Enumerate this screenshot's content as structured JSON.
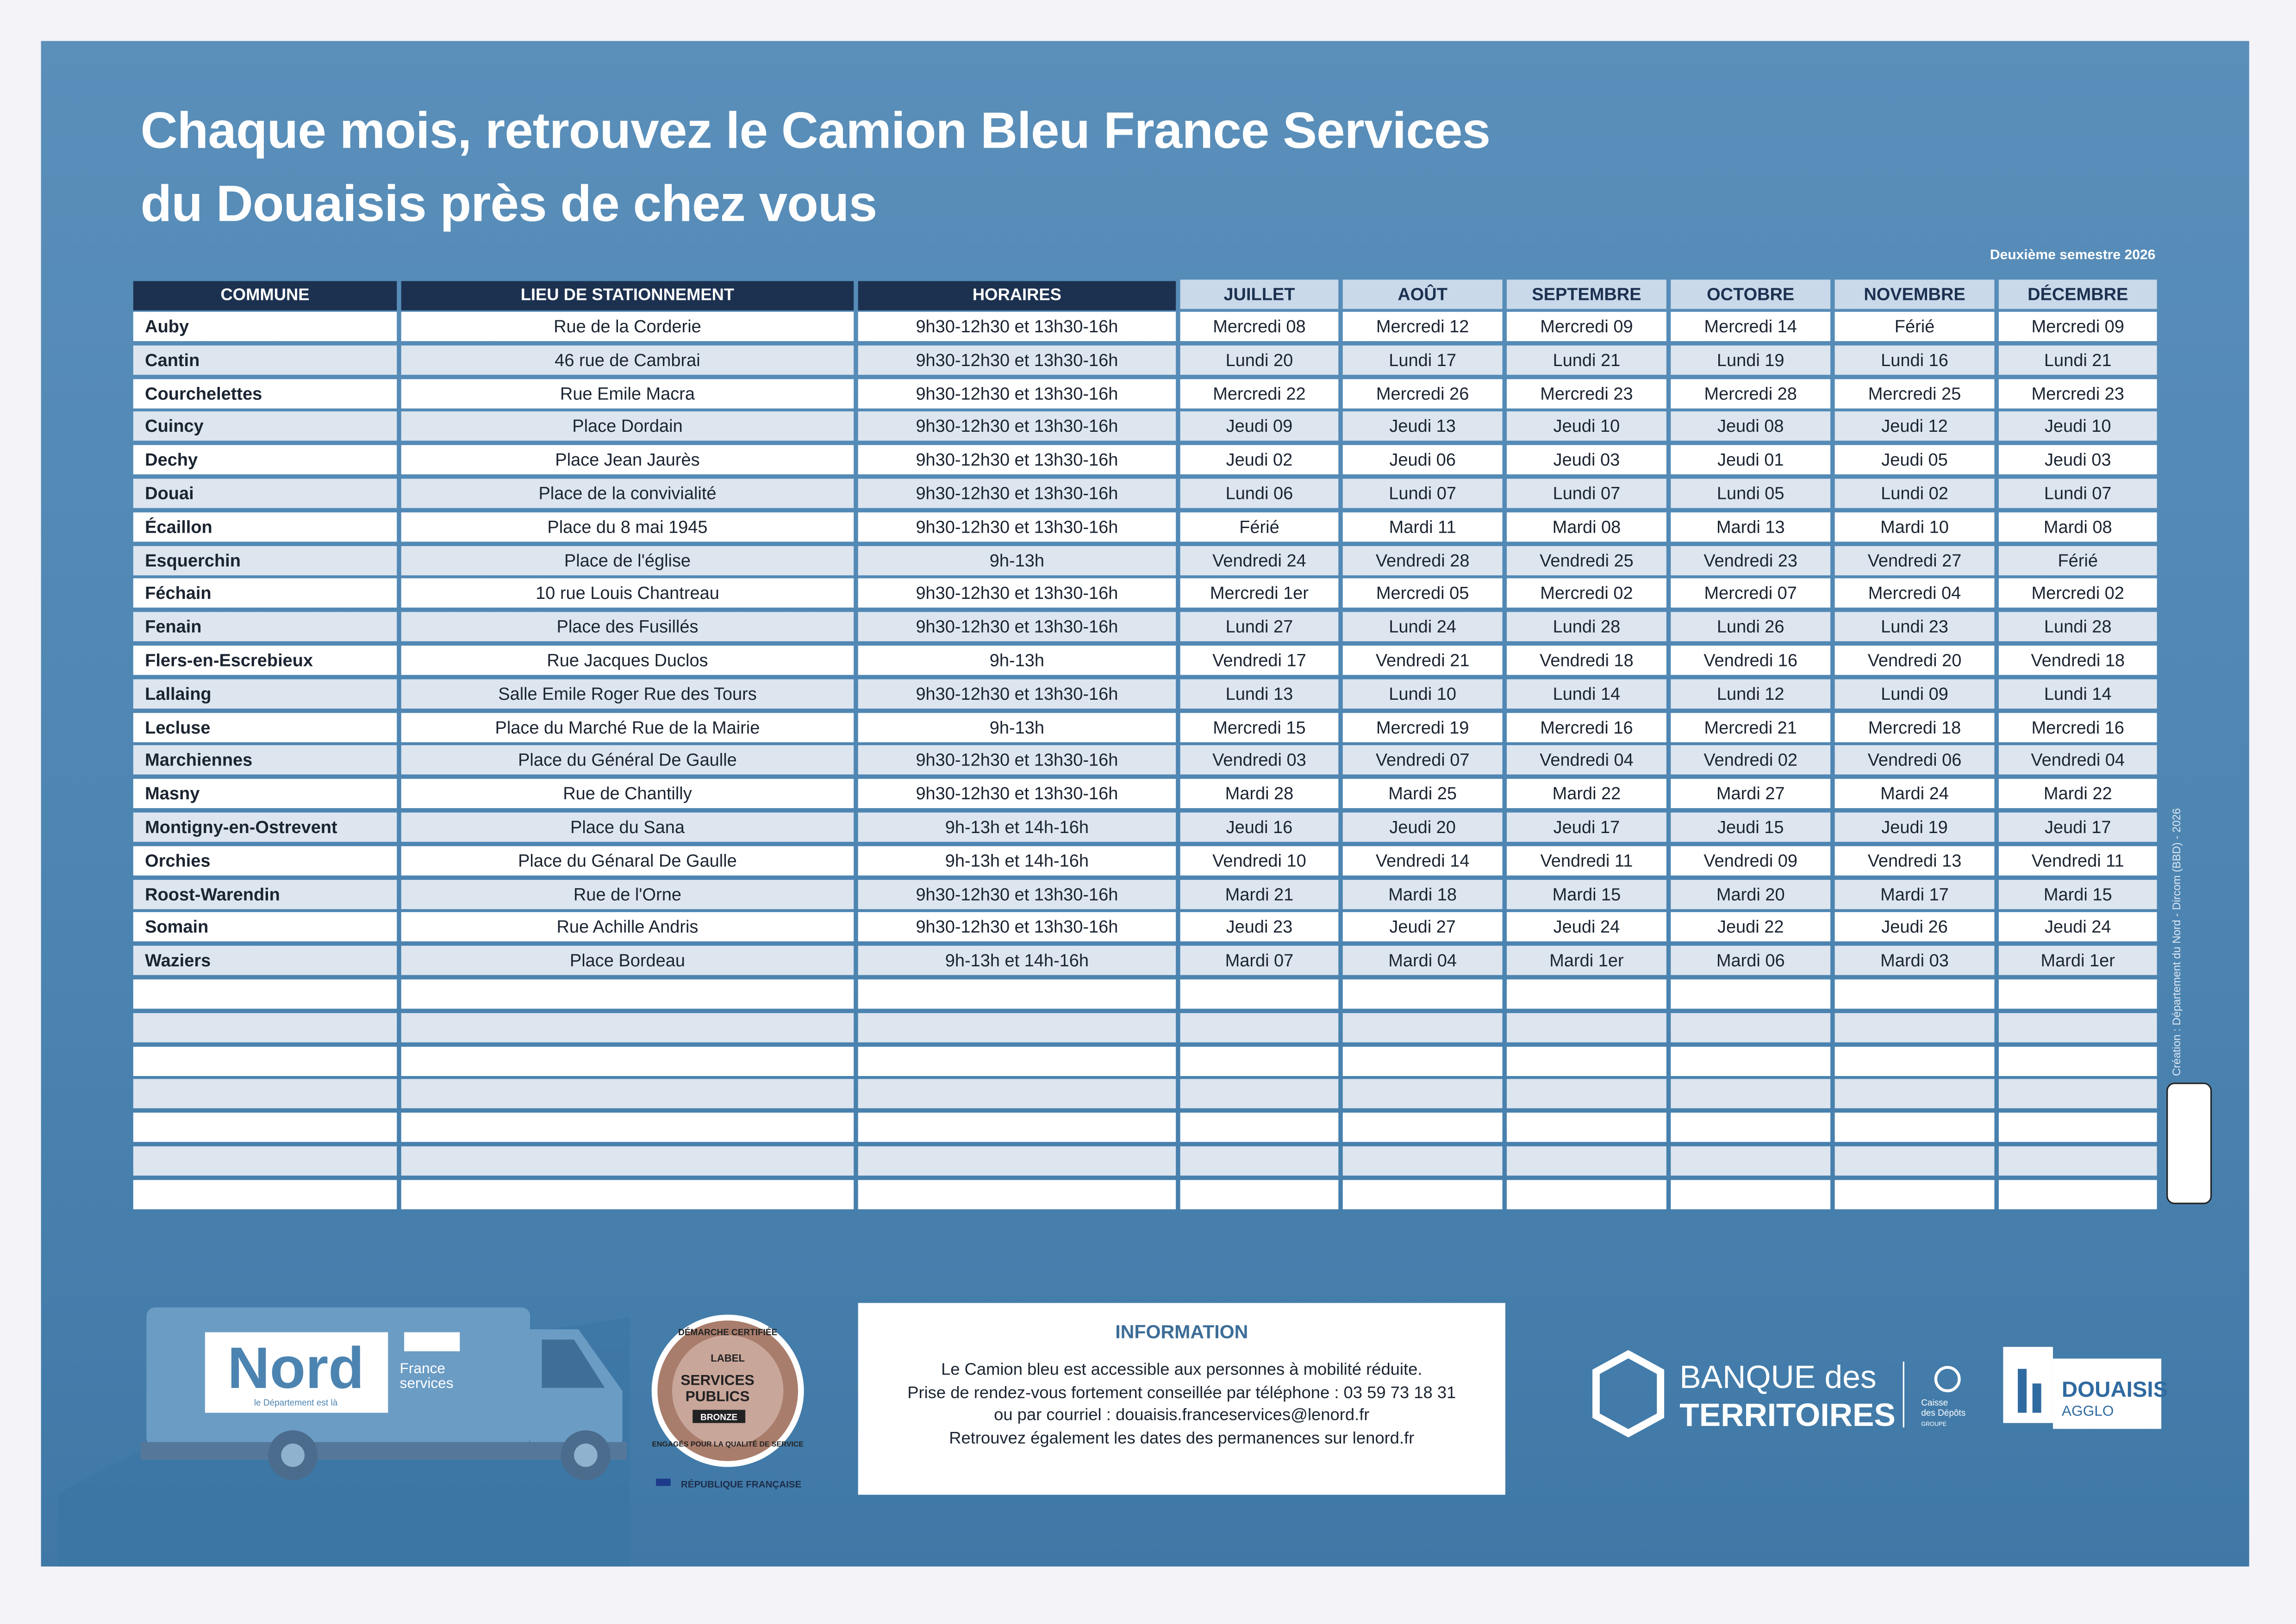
{
  "header": {
    "title_line1": "Chaque mois, retrouvez le Camion Bleu France Services",
    "title_line2": "du Douaisis près de chez vous",
    "semester": "Deuxième semestre 2026"
  },
  "table": {
    "header": [
      "COMMUNE",
      "LIEU DE STATIONNEMENT",
      "HORAIRES",
      "JUILLET",
      "AOÛT",
      "SEPTEMBRE",
      "OCTOBRE",
      "NOVEMBRE",
      "DÉCEMBRE"
    ],
    "rows": [
      [
        "Auby",
        "Rue de la Corderie",
        "9h30-12h30 et 13h30-16h",
        "Mercredi 08",
        "Mercredi 12",
        "Mercredi 09",
        "Mercredi 14",
        "Férié",
        "Mercredi 09"
      ],
      [
        "Cantin",
        "46 rue de Cambrai",
        "9h30-12h30 et 13h30-16h",
        "Lundi 20",
        "Lundi 17",
        "Lundi 21",
        "Lundi 19",
        "Lundi 16",
        "Lundi 21"
      ],
      [
        "Courchelettes",
        "Rue Emile Macra",
        "9h30-12h30 et 13h30-16h",
        "Mercredi 22",
        "Mercredi 26",
        "Mercredi 23",
        "Mercredi 28",
        "Mercredi 25",
        "Mercredi 23"
      ],
      [
        "Cuincy",
        "Place Dordain",
        "9h30-12h30 et 13h30-16h",
        "Jeudi 09",
        "Jeudi 13",
        "Jeudi 10",
        "Jeudi 08",
        "Jeudi 12",
        "Jeudi 10"
      ],
      [
        "Dechy",
        "Place Jean Jaurès",
        "9h30-12h30 et 13h30-16h",
        "Jeudi 02",
        "Jeudi 06",
        "Jeudi 03",
        "Jeudi 01",
        "Jeudi 05",
        "Jeudi 03"
      ],
      [
        "Douai",
        "Place de la convivialité",
        "9h30-12h30 et 13h30-16h",
        "Lundi 06",
        "Lundi 07",
        "Lundi 07",
        "Lundi 05",
        "Lundi 02",
        "Lundi 07"
      ],
      [
        "Écaillon",
        "Place du 8 mai 1945",
        "9h30-12h30 et 13h30-16h",
        "Férié",
        "Mardi 11",
        "Mardi 08",
        "Mardi 13",
        "Mardi 10",
        "Mardi 08"
      ],
      [
        "Esquerchin",
        "Place de l'église",
        "9h-13h",
        "Vendredi 24",
        "Vendredi 28",
        "Vendredi 25",
        "Vendredi 23",
        "Vendredi 27",
        "Férié"
      ],
      [
        "Féchain",
        "10 rue Louis Chantreau",
        "9h30-12h30 et 13h30-16h",
        "Mercredi 1er",
        "Mercredi 05",
        "Mercredi 02",
        "Mercredi 07",
        "Mercredi 04",
        "Mercredi 02"
      ],
      [
        "Fenain",
        "Place des Fusillés",
        "9h30-12h30 et 13h30-16h",
        "Lundi 27",
        "Lundi 24",
        "Lundi 28",
        "Lundi 26",
        "Lundi 23",
        "Lundi 28"
      ],
      [
        "Flers-en-Escrebieux",
        "Rue Jacques Duclos",
        "9h-13h",
        "Vendredi 17",
        "Vendredi 21",
        "Vendredi 18",
        "Vendredi 16",
        "Vendredi 20",
        "Vendredi 18"
      ],
      [
        "Lallaing",
        "Salle Emile Roger Rue des Tours",
        "9h30-12h30 et 13h30-16h",
        "Lundi 13",
        "Lundi 10",
        "Lundi 14",
        "Lundi 12",
        "Lundi 09",
        "Lundi 14"
      ],
      [
        "Lecluse",
        "Place du Marché Rue de la Mairie",
        "9h-13h",
        "Mercredi 15",
        "Mercredi 19",
        "Mercredi 16",
        "Mercredi 21",
        "Mercredi 18",
        "Mercredi 16"
      ],
      [
        "Marchiennes",
        "Place du Général De Gaulle",
        "9h30-12h30 et 13h30-16h",
        "Vendredi 03",
        "Vendredi 07",
        "Vendredi 04",
        "Vendredi 02",
        "Vendredi 06",
        "Vendredi 04"
      ],
      [
        "Masny",
        "Rue de Chantilly",
        "9h30-12h30 et 13h30-16h",
        "Mardi 28",
        "Mardi 25",
        "Mardi 22",
        "Mardi 27",
        "Mardi 24",
        "Mardi 22"
      ],
      [
        "Montigny-en-Ostrevent",
        "Place du Sana",
        "9h-13h et 14h-16h",
        "Jeudi 16",
        "Jeudi 20",
        "Jeudi 17",
        "Jeudi 15",
        "Jeudi 19",
        "Jeudi 17"
      ],
      [
        "Orchies",
        "Place du Génaral De Gaulle",
        "9h-13h et 14h-16h",
        "Vendredi 10",
        "Vendredi 14",
        "Vendredi 11",
        "Vendredi 09",
        "Vendredi 13",
        "Vendredi 11"
      ],
      [
        "Roost-Warendin",
        "Rue de l'Orne",
        "9h30-12h30 et 13h30-16h",
        "Mardi 21",
        "Mardi 18",
        "Mardi 15",
        "Mardi 20",
        "Mardi 17",
        "Mardi 15"
      ],
      [
        "Somain",
        "Rue Achille Andris",
        "9h30-12h30 et 13h30-16h",
        "Jeudi 23",
        "Jeudi 27",
        "Jeudi 24",
        "Jeudi 22",
        "Jeudi 26",
        "Jeudi 24"
      ],
      [
        "Waziers",
        "Place Bordeau",
        "9h-13h et 14h-16h",
        "Mardi 07",
        "Mardi 04",
        "Mardi 1er",
        "Mardi 06",
        "Mardi 03",
        "Mardi 1er"
      ]
    ]
  },
  "information": {
    "title": "INFORMATION",
    "lines": [
      "Le Camion bleu est accessible aux personnes à mobilité réduite.",
      "Prise de rendez-vous fortement conseillée par téléphone : 03 59 73 18 31",
      "ou par courriel : douaisis.franceservices@lenord.fr",
      "Retrouvez également les dates des permanences sur lenord.fr"
    ]
  },
  "logos": {
    "nord": "Nord",
    "nord_tagline": "le Département est là",
    "france_services_1": "France",
    "france_services_2": "services",
    "badge_top": "DÉMARCHE CERTIFIÉE",
    "badge_label": "LABEL",
    "badge_main_1": "SERVICES",
    "badge_main_2": "PUBLICS",
    "badge_level": "BRONZE",
    "badge_bottom": "ENGAGÉS POUR LA QUALITÉ DE SERVICE",
    "republique": "RÉPUBLIQUE FRANÇAISE",
    "banque_1": "BANQUE des",
    "banque_2": "TERRITOIRES",
    "cdc_1": "Caisse",
    "cdc_2": "des Dépôts",
    "cdc_3": "GROUPE",
    "douaisis_1": "DOUAISIS",
    "douaisis_2": "AGGLO"
  },
  "credit": "Création : Département du Nord - Dircom (BBD) - 2026"
}
